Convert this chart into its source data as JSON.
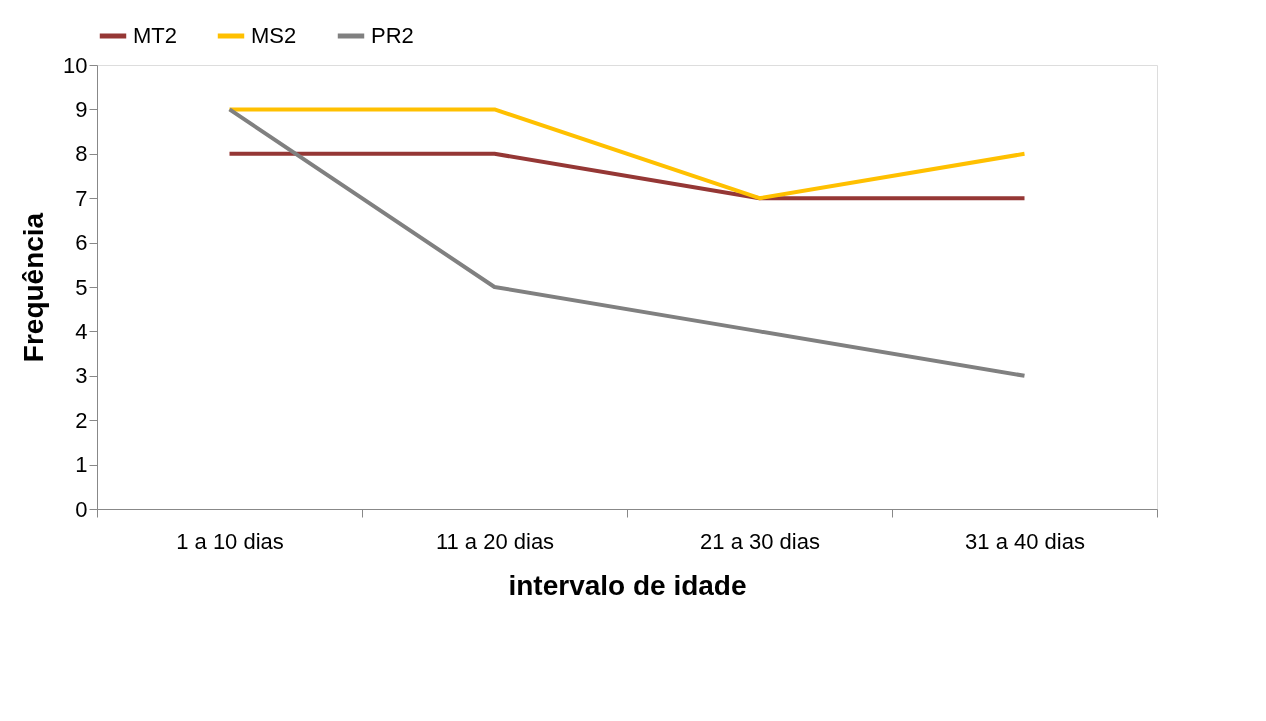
{
  "chart_data": {
    "type": "line",
    "xlabel": "intervalo de idade",
    "ylabel": "Frequência",
    "categories": [
      "1 a 10 dias",
      "11 a 20 dias",
      "21 a 30 dias",
      "31 a 40 dias"
    ],
    "series": [
      {
        "name": "MT2",
        "color": "#953735",
        "values": [
          8,
          8,
          7,
          7
        ]
      },
      {
        "name": "MS2",
        "color": "#ffc000",
        "values": [
          9,
          9,
          7,
          8
        ]
      },
      {
        "name": "PR2",
        "color": "#808080",
        "values": [
          9,
          5,
          4,
          3
        ]
      }
    ],
    "ylim": [
      0,
      10
    ],
    "yticks": [
      0,
      1,
      2,
      3,
      4,
      5,
      6,
      7,
      8,
      9,
      10
    ],
    "grid": false,
    "legend": "top",
    "marker": "none",
    "line_style": "solid"
  }
}
